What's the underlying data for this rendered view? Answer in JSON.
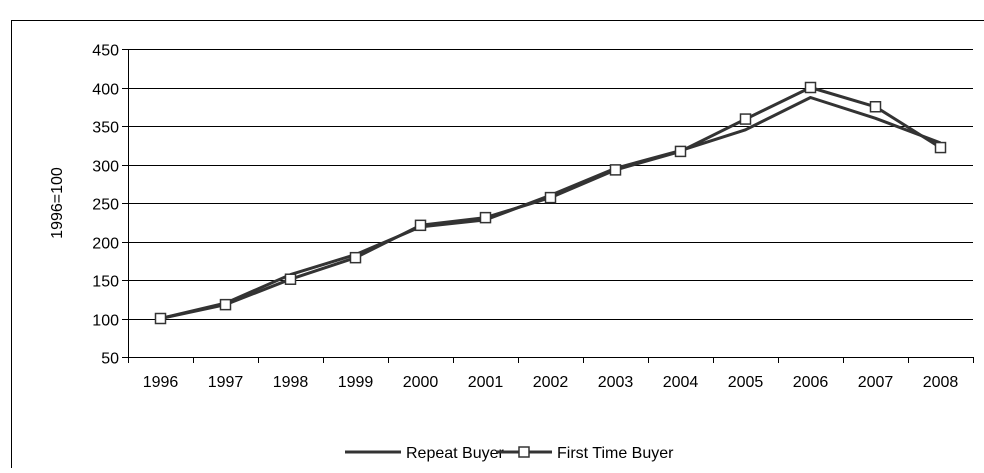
{
  "chart_data": {
    "type": "line",
    "title": "",
    "xlabel": "",
    "ylabel": "1996=100",
    "x": [
      "1996",
      "1997",
      "1998",
      "1999",
      "2000",
      "2001",
      "2002",
      "2003",
      "2004",
      "2005",
      "2006",
      "2007",
      "2008"
    ],
    "ylim": [
      50,
      450
    ],
    "yticks": [
      50,
      100,
      150,
      200,
      250,
      300,
      350,
      400,
      450
    ],
    "grid": "horizontal",
    "legend_position": "bottom",
    "series": [
      {
        "name": "Repeat Buyer",
        "marker": "none",
        "color": "#333333",
        "values": [
          100,
          120,
          157,
          183,
          219,
          228,
          260,
          295,
          318,
          345,
          387,
          360,
          328
        ]
      },
      {
        "name": "First Time Buyer",
        "marker": "square",
        "color": "#333333",
        "values": [
          100,
          118,
          151,
          179,
          221,
          231,
          257,
          293,
          317,
          359,
          400,
          375,
          322
        ]
      }
    ]
  }
}
